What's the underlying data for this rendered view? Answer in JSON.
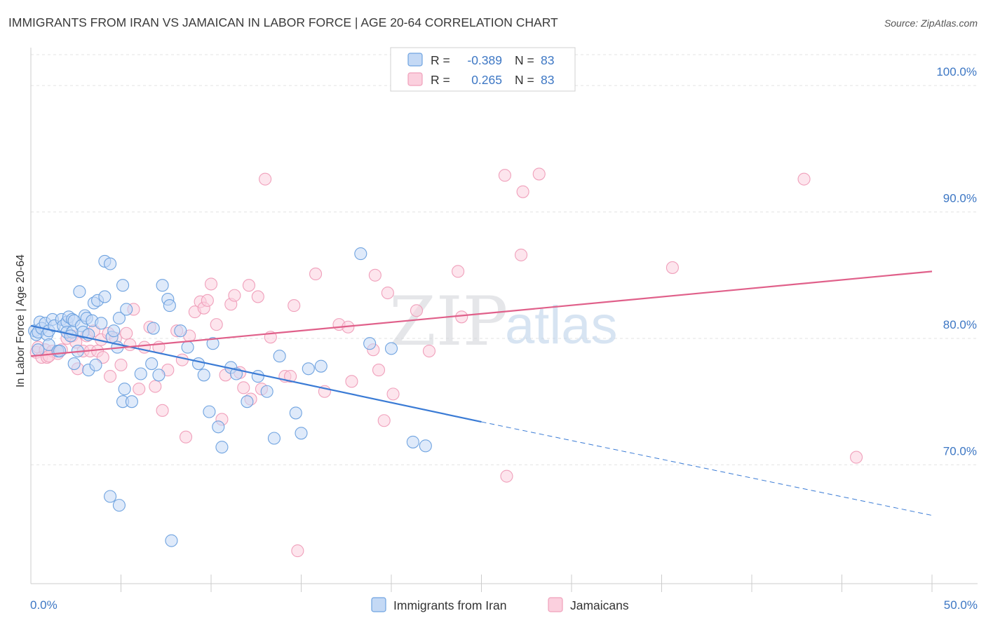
{
  "title": "IMMIGRANTS FROM IRAN VS JAMAICAN IN LABOR FORCE | AGE 20-64 CORRELATION CHART",
  "source": "Source: ZipAtlas.com",
  "watermark": {
    "zip": "ZIP",
    "atlas": "atlas"
  },
  "legend": {
    "rows": [
      {
        "r_label": "R =",
        "r_value": "-0.389",
        "n_label": "N =",
        "n_value": "83"
      },
      {
        "r_label": "R =",
        "r_value": "0.265",
        "n_label": "N =",
        "n_value": "83"
      }
    ]
  },
  "bottom_legend": [
    "Immigrants from Iran",
    "Jamaicans"
  ],
  "chart_data": {
    "type": "scatter",
    "title": "IMMIGRANTS FROM IRAN VS JAMAICAN IN LABOR FORCE | AGE 20-64 CORRELATION CHART",
    "xlabel": "",
    "ylabel": "In Labor Force | Age 20-64",
    "xlim": [
      0,
      50
    ],
    "ylim": [
      60.6,
      103
    ],
    "x_tick_labels": [
      "0.0%",
      "50.0%"
    ],
    "y_ticks": [
      70,
      80,
      90,
      100
    ],
    "y_tick_labels": [
      "70.0%",
      "80.0%",
      "90.0%",
      "100.0%"
    ],
    "grid": true,
    "legend_position": "top-center",
    "colors": {
      "iran": "#6fa3e0",
      "iran_line": "#3a7bd5",
      "jamaicans": "#f0a0bb",
      "jamaicans_line": "#e0608a"
    },
    "series": [
      {
        "name": "Immigrants from Iran",
        "r": -0.389,
        "n": 83,
        "trend": {
          "x0": 0,
          "y0": 81.0,
          "x1": 25,
          "y1": 73.4,
          "x_dash_end": 50,
          "y_dash_end": 66.0
        },
        "points": [
          [
            0.2,
            80.6
          ],
          [
            0.3,
            80.3
          ],
          [
            0.4,
            80.5
          ],
          [
            0.5,
            81.3
          ],
          [
            0.6,
            80.8
          ],
          [
            0.8,
            81.2
          ],
          [
            0.9,
            80.3
          ],
          [
            1.0,
            79.5
          ],
          [
            1.0,
            80.6
          ],
          [
            1.2,
            81.5
          ],
          [
            1.3,
            81.0
          ],
          [
            1.5,
            79.0
          ],
          [
            1.7,
            81.5
          ],
          [
            1.8,
            81.0
          ],
          [
            2.0,
            81.3
          ],
          [
            2.0,
            80.5
          ],
          [
            2.1,
            81.7
          ],
          [
            2.3,
            80.5
          ],
          [
            2.3,
            81.5
          ],
          [
            2.4,
            81.4
          ],
          [
            2.4,
            78.0
          ],
          [
            2.6,
            79.0
          ],
          [
            2.7,
            83.7
          ],
          [
            2.8,
            81.0
          ],
          [
            2.9,
            80.5
          ],
          [
            3.0,
            81.8
          ],
          [
            3.1,
            81.6
          ],
          [
            3.2,
            80.3
          ],
          [
            3.2,
            77.5
          ],
          [
            3.4,
            81.4
          ],
          [
            3.5,
            82.8
          ],
          [
            3.6,
            77.9
          ],
          [
            3.7,
            83.0
          ],
          [
            3.9,
            81.2
          ],
          [
            4.1,
            86.1
          ],
          [
            4.1,
            83.3
          ],
          [
            4.4,
            85.9
          ],
          [
            4.5,
            80.1
          ],
          [
            4.6,
            80.6
          ],
          [
            4.8,
            79.3
          ],
          [
            4.9,
            81.6
          ],
          [
            5.1,
            75.0
          ],
          [
            5.1,
            84.2
          ],
          [
            5.2,
            76.0
          ],
          [
            5.3,
            82.3
          ],
          [
            5.6,
            75.0
          ],
          [
            6.1,
            77.2
          ],
          [
            6.7,
            78.0
          ],
          [
            6.8,
            80.8
          ],
          [
            7.1,
            77.1
          ],
          [
            7.3,
            84.2
          ],
          [
            7.6,
            83.1
          ],
          [
            7.7,
            82.6
          ],
          [
            8.3,
            80.6
          ],
          [
            8.7,
            79.3
          ],
          [
            9.3,
            78.0
          ],
          [
            9.6,
            77.1
          ],
          [
            9.9,
            74.2
          ],
          [
            10.1,
            79.6
          ],
          [
            10.4,
            73.0
          ],
          [
            10.6,
            71.4
          ],
          [
            11.1,
            77.7
          ],
          [
            11.4,
            77.2
          ],
          [
            12.0,
            75.0
          ],
          [
            12.6,
            77.0
          ],
          [
            13.1,
            75.8
          ],
          [
            13.5,
            72.1
          ],
          [
            13.8,
            78.6
          ],
          [
            14.7,
            74.1
          ],
          [
            15.0,
            72.5
          ],
          [
            15.4,
            77.6
          ],
          [
            16.1,
            77.8
          ],
          [
            18.3,
            86.7
          ],
          [
            18.8,
            79.6
          ],
          [
            20.0,
            79.2
          ],
          [
            21.2,
            71.8
          ],
          [
            21.9,
            71.5
          ],
          [
            4.4,
            67.5
          ],
          [
            4.9,
            66.8
          ],
          [
            7.8,
            64.0
          ],
          [
            0.4,
            79.1
          ],
          [
            1.6,
            79.0
          ],
          [
            2.2,
            80.2
          ]
        ]
      },
      {
        "name": "Jamaicans",
        "r": 0.265,
        "n": 83,
        "trend": {
          "x0": 0,
          "y0": 78.6,
          "x1": 50,
          "y1": 85.3
        },
        "points": [
          [
            0.3,
            78.9
          ],
          [
            0.4,
            79.3
          ],
          [
            0.6,
            78.5
          ],
          [
            0.8,
            79.1
          ],
          [
            0.9,
            78.5
          ],
          [
            1.2,
            79.0
          ],
          [
            1.5,
            78.8
          ],
          [
            1.7,
            79.1
          ],
          [
            2.0,
            80.0
          ],
          [
            2.3,
            80.2
          ],
          [
            2.6,
            77.6
          ],
          [
            2.9,
            79.0
          ],
          [
            3.1,
            80.2
          ],
          [
            3.3,
            79.0
          ],
          [
            3.5,
            80.6
          ],
          [
            3.7,
            79.0
          ],
          [
            3.9,
            79.9
          ],
          [
            4.0,
            78.5
          ],
          [
            4.3,
            80.4
          ],
          [
            4.4,
            77.0
          ],
          [
            4.7,
            80.0
          ],
          [
            5.0,
            77.9
          ],
          [
            5.3,
            80.4
          ],
          [
            5.5,
            79.5
          ],
          [
            5.7,
            82.3
          ],
          [
            6.0,
            76.0
          ],
          [
            6.3,
            79.3
          ],
          [
            6.6,
            80.9
          ],
          [
            6.9,
            76.2
          ],
          [
            7.1,
            79.3
          ],
          [
            7.3,
            74.3
          ],
          [
            7.6,
            77.5
          ],
          [
            8.1,
            80.6
          ],
          [
            8.4,
            78.3
          ],
          [
            8.6,
            72.2
          ],
          [
            8.8,
            80.2
          ],
          [
            9.1,
            82.1
          ],
          [
            9.4,
            82.9
          ],
          [
            9.6,
            82.4
          ],
          [
            9.8,
            83.0
          ],
          [
            10.0,
            84.3
          ],
          [
            10.3,
            81.1
          ],
          [
            10.6,
            73.6
          ],
          [
            10.8,
            77.1
          ],
          [
            11.1,
            82.7
          ],
          [
            11.3,
            83.4
          ],
          [
            11.6,
            77.3
          ],
          [
            11.8,
            76.1
          ],
          [
            12.1,
            84.2
          ],
          [
            12.2,
            75.2
          ],
          [
            12.6,
            83.3
          ],
          [
            12.8,
            76.0
          ],
          [
            13.0,
            92.6
          ],
          [
            13.3,
            80.1
          ],
          [
            14.1,
            77.0
          ],
          [
            14.4,
            77.0
          ],
          [
            14.6,
            82.6
          ],
          [
            15.8,
            85.1
          ],
          [
            16.3,
            75.8
          ],
          [
            17.1,
            81.1
          ],
          [
            17.6,
            80.9
          ],
          [
            17.8,
            76.6
          ],
          [
            19.0,
            79.1
          ],
          [
            19.1,
            85.0
          ],
          [
            19.3,
            77.5
          ],
          [
            19.6,
            73.5
          ],
          [
            19.8,
            83.6
          ],
          [
            20.1,
            75.6
          ],
          [
            21.4,
            82.2
          ],
          [
            22.1,
            79.0
          ],
          [
            23.7,
            85.3
          ],
          [
            23.9,
            81.7
          ],
          [
            26.3,
            92.9
          ],
          [
            26.4,
            69.1
          ],
          [
            27.2,
            86.6
          ],
          [
            27.3,
            91.6
          ],
          [
            28.2,
            93.0
          ],
          [
            35.6,
            85.6
          ],
          [
            42.9,
            92.6
          ],
          [
            45.8,
            70.6
          ],
          [
            14.8,
            63.2
          ],
          [
            1.0,
            78.6
          ],
          [
            2.5,
            79.7
          ]
        ]
      }
    ]
  }
}
